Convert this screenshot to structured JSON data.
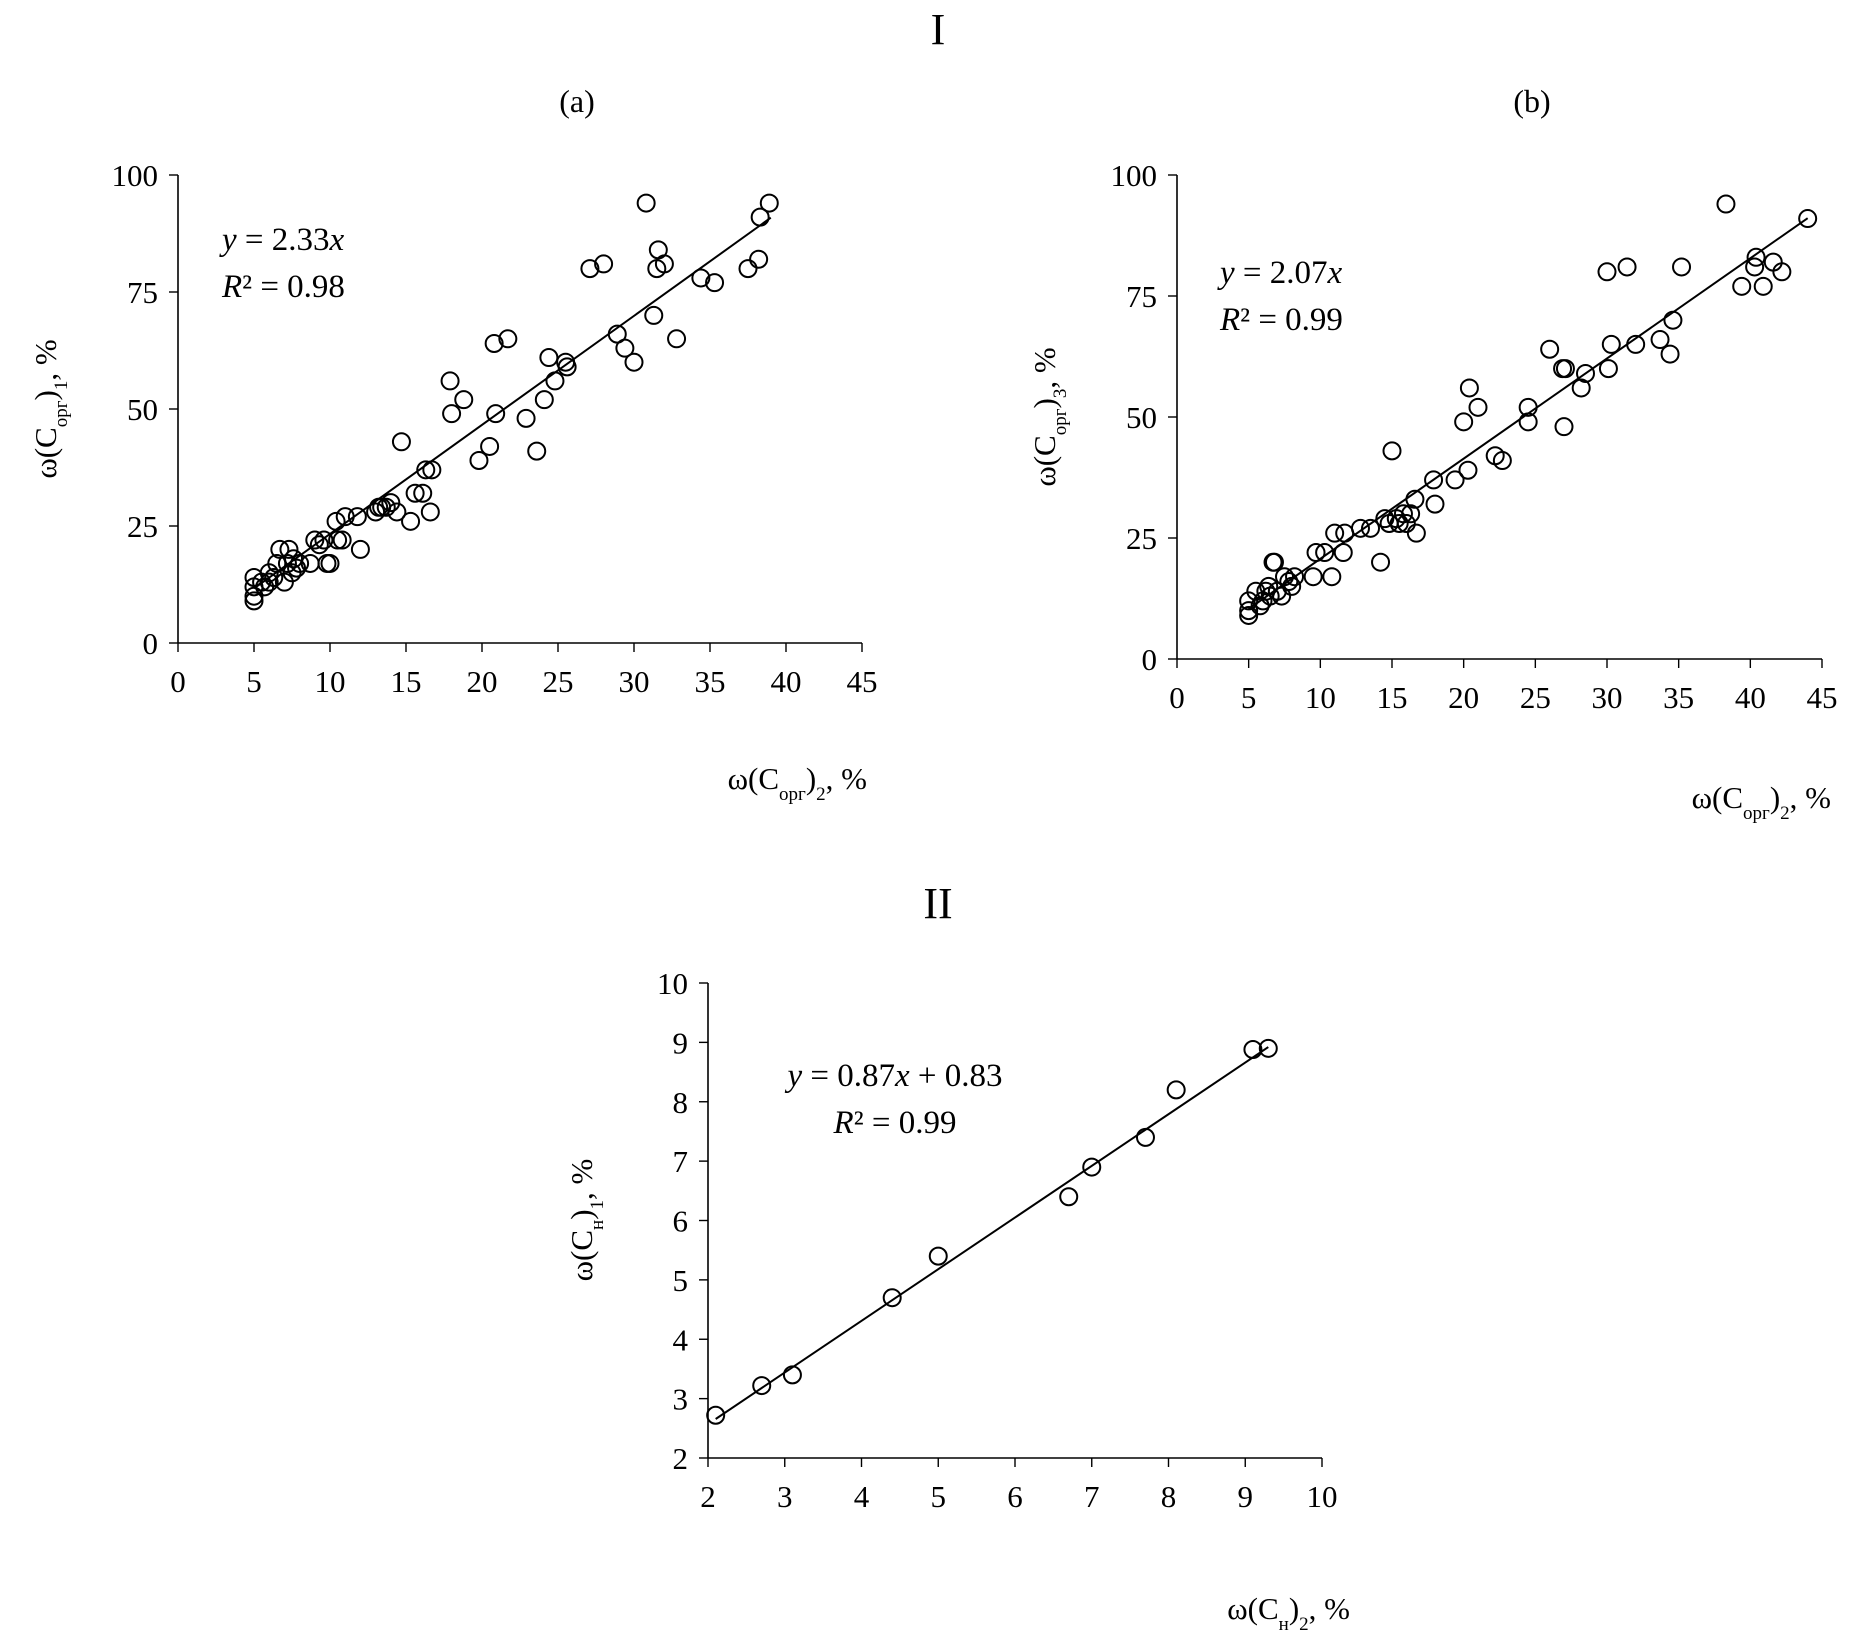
{
  "figure": {
    "section_1_label": "I",
    "section_2_label": "II"
  },
  "chart_data": [
    {
      "id": "a",
      "type": "scatter",
      "panel_label": "(a)",
      "xlabel": {
        "main": "ω(C",
        "sub": "орг",
        "tail": ")",
        "index": "2",
        "suffix": ", %"
      },
      "ylabel": {
        "main": "ω(C",
        "sub": "орг",
        "tail": ")",
        "index": "1",
        "suffix": ", %"
      },
      "xlim": [
        0,
        45
      ],
      "ylim": [
        0,
        100
      ],
      "xticks": [
        0,
        5,
        10,
        15,
        20,
        25,
        30,
        35,
        40,
        45
      ],
      "yticks": [
        0,
        25,
        50,
        75,
        100
      ],
      "grid": false,
      "equation": "y = 2.33x",
      "r2": "R² = 0.98",
      "fit": {
        "slope": 2.33,
        "intercept": 0,
        "x_range": [
          5,
          39
        ]
      },
      "points": [
        [
          5,
          9
        ],
        [
          5,
          10
        ],
        [
          5,
          12
        ],
        [
          5,
          14
        ],
        [
          5.5,
          13
        ],
        [
          5.7,
          12
        ],
        [
          6,
          15
        ],
        [
          6,
          13
        ],
        [
          6.3,
          14
        ],
        [
          6.5,
          17
        ],
        [
          6.7,
          20
        ],
        [
          7,
          13
        ],
        [
          7.2,
          17
        ],
        [
          7.3,
          20
        ],
        [
          7.5,
          15
        ],
        [
          7.6,
          18
        ],
        [
          7.8,
          16
        ],
        [
          8,
          17
        ],
        [
          8.7,
          17
        ],
        [
          9,
          22
        ],
        [
          9.3,
          21
        ],
        [
          9.6,
          22
        ],
        [
          9.8,
          17
        ],
        [
          10,
          17
        ],
        [
          10.4,
          26
        ],
        [
          10.5,
          22
        ],
        [
          10.8,
          22
        ],
        [
          11,
          27
        ],
        [
          11.8,
          27
        ],
        [
          12,
          20
        ],
        [
          13,
          28
        ],
        [
          13.2,
          29
        ],
        [
          13.4,
          29
        ],
        [
          13.7,
          29
        ],
        [
          14,
          30
        ],
        [
          14.4,
          28
        ],
        [
          14.7,
          43
        ],
        [
          15.3,
          26
        ],
        [
          15.6,
          32
        ],
        [
          16.1,
          32
        ],
        [
          16.3,
          37
        ],
        [
          16.6,
          28
        ],
        [
          16.7,
          37
        ],
        [
          17.9,
          56
        ],
        [
          18,
          49
        ],
        [
          18.8,
          52
        ],
        [
          19.8,
          39
        ],
        [
          20.5,
          42
        ],
        [
          20.8,
          64
        ],
        [
          20.9,
          49
        ],
        [
          21.7,
          65
        ],
        [
          22.9,
          48
        ],
        [
          23.6,
          41
        ],
        [
          24.1,
          52
        ],
        [
          24.4,
          61
        ],
        [
          24.8,
          56
        ],
        [
          25.5,
          60
        ],
        [
          25.6,
          59
        ],
        [
          27.1,
          80
        ],
        [
          28,
          81
        ],
        [
          28.9,
          66
        ],
        [
          29.4,
          63
        ],
        [
          30,
          60
        ],
        [
          30.8,
          94
        ],
        [
          31.3,
          70
        ],
        [
          31.5,
          80
        ],
        [
          31.6,
          84
        ],
        [
          32,
          81
        ],
        [
          32.8,
          65
        ],
        [
          34.4,
          78
        ],
        [
          35.3,
          77
        ],
        [
          37.5,
          80
        ],
        [
          38.2,
          82
        ],
        [
          38.3,
          91
        ],
        [
          38.9,
          94
        ]
      ]
    },
    {
      "id": "b",
      "type": "scatter",
      "panel_label": "(b)",
      "xlabel": {
        "main": "ω(C",
        "sub": "орг",
        "tail": ")",
        "index": "2",
        "suffix": ", %"
      },
      "ylabel": {
        "main": "ω(C",
        "sub": "орг",
        "tail": ")",
        "index": "3",
        "suffix": ", %"
      },
      "xlim": [
        0,
        45
      ],
      "ylim": [
        0,
        100
      ],
      "xticks": [
        0,
        5,
        10,
        15,
        20,
        25,
        30,
        35,
        40,
        45
      ],
      "yticks": [
        0,
        25,
        50,
        75,
        100
      ],
      "grid": false,
      "equation": "y = 2.07x",
      "r2": "R² = 0.99",
      "fit": {
        "slope": 2.07,
        "intercept": 0,
        "x_range": [
          5,
          44
        ]
      },
      "points": [
        [
          5,
          9
        ],
        [
          5,
          10
        ],
        [
          5,
          12
        ],
        [
          5.5,
          14
        ],
        [
          5.8,
          11
        ],
        [
          6,
          12
        ],
        [
          6.2,
          14
        ],
        [
          6.4,
          15
        ],
        [
          6.5,
          13
        ],
        [
          6.7,
          20
        ],
        [
          6.8,
          20
        ],
        [
          7,
          14
        ],
        [
          7.3,
          13
        ],
        [
          7.5,
          17
        ],
        [
          7.8,
          16
        ],
        [
          8,
          15
        ],
        [
          8.2,
          17
        ],
        [
          9.5,
          17
        ],
        [
          9.7,
          22
        ],
        [
          10.3,
          22
        ],
        [
          10.8,
          17
        ],
        [
          11,
          26
        ],
        [
          11.6,
          22
        ],
        [
          11.7,
          26
        ],
        [
          12.8,
          27
        ],
        [
          13.5,
          27
        ],
        [
          14.2,
          20
        ],
        [
          14.5,
          29
        ],
        [
          14.8,
          28
        ],
        [
          15,
          43
        ],
        [
          15.3,
          29
        ],
        [
          15.5,
          28
        ],
        [
          15.8,
          30
        ],
        [
          16,
          28
        ],
        [
          16.3,
          30
        ],
        [
          16.6,
          33
        ],
        [
          16.7,
          26
        ],
        [
          17.9,
          37
        ],
        [
          18,
          32
        ],
        [
          19.4,
          37
        ],
        [
          20,
          49
        ],
        [
          20.3,
          39
        ],
        [
          20.4,
          56
        ],
        [
          21,
          52
        ],
        [
          22.2,
          42
        ],
        [
          22.7,
          41
        ],
        [
          24.5,
          49
        ],
        [
          24.5,
          52
        ],
        [
          26,
          64
        ],
        [
          26.9,
          60
        ],
        [
          27,
          48
        ],
        [
          27.1,
          60
        ],
        [
          28.2,
          56
        ],
        [
          28.5,
          59
        ],
        [
          30,
          80
        ],
        [
          30.1,
          60
        ],
        [
          30.3,
          65
        ],
        [
          31.4,
          81
        ],
        [
          32,
          65
        ],
        [
          33.7,
          66
        ],
        [
          34.4,
          63
        ],
        [
          34.6,
          70
        ],
        [
          35.2,
          81
        ],
        [
          38.3,
          94
        ],
        [
          39.4,
          77
        ],
        [
          40.3,
          81
        ],
        [
          40.4,
          83
        ],
        [
          40.9,
          77
        ],
        [
          41.6,
          82
        ],
        [
          42.2,
          80
        ],
        [
          44,
          91
        ]
      ]
    },
    {
      "id": "c",
      "type": "scatter",
      "panel_label": "",
      "xlabel": {
        "main": "ω(C",
        "sub": "н",
        "tail": ")",
        "index": "2",
        "suffix": ", %"
      },
      "ylabel": {
        "main": "ω(C",
        "sub": "н",
        "tail": ")",
        "index": "1",
        "suffix": ", %"
      },
      "xlim": [
        2,
        10
      ],
      "ylim": [
        2,
        10
      ],
      "xticks": [
        2,
        3,
        4,
        5,
        6,
        7,
        8,
        9,
        10
      ],
      "yticks": [
        2,
        3,
        4,
        5,
        6,
        7,
        8,
        9,
        10
      ],
      "grid": false,
      "equation": "y = 0.87x + 0.83",
      "r2": "R² = 0.99",
      "fit": {
        "slope": 0.87,
        "intercept": 0.83,
        "x_range": [
          2.1,
          9.3
        ]
      },
      "points": [
        [
          2.1,
          2.72
        ],
        [
          2.7,
          3.22
        ],
        [
          3.1,
          3.4
        ],
        [
          4.4,
          4.7
        ],
        [
          5,
          5.4
        ],
        [
          6.7,
          6.4
        ],
        [
          7,
          6.9
        ],
        [
          7.7,
          7.4
        ],
        [
          8.1,
          8.2
        ],
        [
          9.1,
          8.88
        ],
        [
          9.3,
          8.9
        ]
      ]
    }
  ]
}
